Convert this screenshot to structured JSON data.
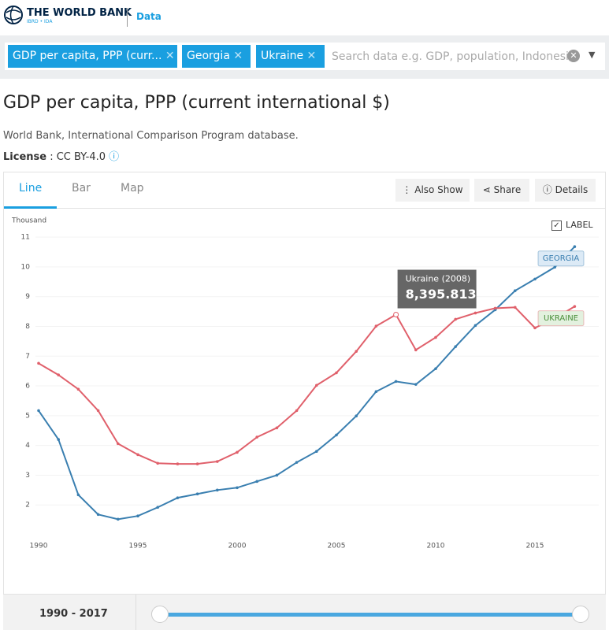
{
  "header": {
    "brand": "THE WORLD BANK",
    "brand_sub": "IBRD • IDA",
    "section": "Data"
  },
  "search": {
    "chips": [
      "GDP per capita, PPP (curr...",
      "Georgia",
      "Ukraine"
    ],
    "placeholder": "Search data e.g. GDP, population, Indonesia"
  },
  "indicator": {
    "title": "GDP per capita, PPP (current international $)",
    "source": "World Bank, International Comparison Program database.",
    "license_label": "License",
    "license": ": CC BY-4.0"
  },
  "tabs": [
    "Line",
    "Bar",
    "Map"
  ],
  "actions": [
    "Also Show",
    "Share",
    "Details"
  ],
  "label_toggle": "LABEL",
  "chart_data": {
    "type": "line",
    "y_label": "Thousand",
    "x": [
      1990,
      1991,
      1992,
      1993,
      1994,
      1995,
      1996,
      1997,
      1998,
      1999,
      2000,
      2001,
      2002,
      2003,
      2004,
      2005,
      2006,
      2007,
      2008,
      2009,
      2010,
      2011,
      2012,
      2013,
      2014,
      2015,
      2016,
      2017
    ],
    "series": [
      {
        "name": "GEORGIA",
        "color": "#3a7fb0",
        "label_bg": "#dceaf6",
        "values": [
          5.17,
          4.2,
          2.34,
          1.68,
          1.52,
          1.63,
          1.92,
          2.24,
          2.37,
          2.5,
          2.58,
          2.79,
          3.0,
          3.43,
          3.8,
          4.35,
          4.99,
          5.81,
          6.15,
          6.05,
          6.58,
          7.32,
          8.03,
          8.56,
          9.2,
          9.59,
          9.99,
          10.68
        ]
      },
      {
        "name": "UKRAINE",
        "color": "#e0606b",
        "label_bg": "#e3f1df",
        "label_color": "#4a8f3a",
        "values": [
          6.76,
          6.37,
          5.89,
          5.17,
          4.06,
          3.69,
          3.4,
          3.38,
          3.38,
          3.46,
          3.77,
          4.28,
          4.59,
          5.17,
          6.02,
          6.44,
          7.16,
          8.01,
          8.395813,
          7.21,
          7.63,
          8.24,
          8.45,
          8.61,
          8.64,
          7.95,
          8.27,
          8.67
        ],
        "value_labels": [
          null,
          null,
          null,
          null,
          null,
          null,
          null,
          null,
          null,
          null,
          null,
          null,
          null,
          null,
          null,
          null,
          null,
          null,
          "8,395.813",
          null,
          null,
          null,
          null,
          null,
          null,
          null,
          null,
          null
        ],
        "tooltip_title": "Ukraine (2008)"
      }
    ],
    "xlim": [
      1990,
      2017.5
    ],
    "xticks": [
      1990,
      1995,
      2000,
      2005,
      2010,
      2015
    ],
    "ylim": [
      1,
      11.4
    ],
    "yticks": [
      2,
      3,
      4,
      5,
      6,
      7,
      8,
      9,
      10,
      11
    ]
  },
  "range": {
    "start": "1990",
    "separator": "-",
    "end": "2017"
  }
}
